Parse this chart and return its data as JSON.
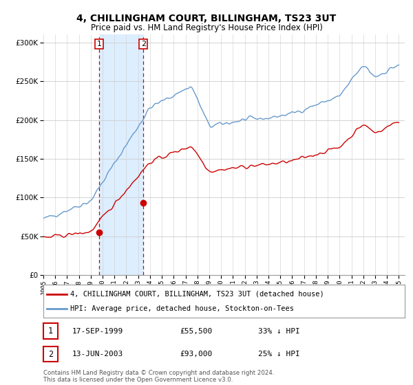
{
  "title": "4, CHILLINGHAM COURT, BILLINGHAM, TS23 3UT",
  "subtitle": "Price paid vs. HM Land Registry's House Price Index (HPI)",
  "legend_line1": "4, CHILLINGHAM COURT, BILLINGHAM, TS23 3UT (detached house)",
  "legend_line2": "HPI: Average price, detached house, Stockton-on-Tees",
  "transaction1_label": "1",
  "transaction1_date": "17-SEP-1999",
  "transaction1_price": "£55,500",
  "transaction1_hpi": "33% ↓ HPI",
  "transaction1_year": 1999.71,
  "transaction1_value": 55500,
  "transaction2_label": "2",
  "transaction2_date": "13-JUN-2003",
  "transaction2_price": "£93,000",
  "transaction2_hpi": "25% ↓ HPI",
  "transaction2_year": 2003.44,
  "transaction2_value": 93000,
  "footnote": "Contains HM Land Registry data © Crown copyright and database right 2024.\nThis data is licensed under the Open Government Licence v3.0.",
  "hpi_color": "#6699cc",
  "price_color": "#cc0000",
  "shading_color": "#ddeeff",
  "background_color": "#ffffff",
  "ylim": [
    0,
    310000
  ],
  "xlim_start": 1995.0,
  "xlim_end": 2025.5
}
